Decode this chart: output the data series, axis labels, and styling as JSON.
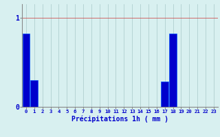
{
  "categories": [
    0,
    1,
    2,
    3,
    4,
    5,
    6,
    7,
    8,
    9,
    10,
    11,
    12,
    13,
    14,
    15,
    16,
    17,
    18,
    19,
    20,
    21,
    22,
    23
  ],
  "values": [
    0.82,
    0.3,
    0.0,
    0.0,
    0.0,
    0.0,
    0.0,
    0.0,
    0.0,
    0.0,
    0.0,
    0.0,
    0.0,
    0.0,
    0.0,
    0.0,
    0.0,
    0.28,
    0.82,
    0.0,
    0.0,
    0.0,
    0.0,
    0.0
  ],
  "bar_color": "#0000cc",
  "bar_edge_color": "#0055ff",
  "background_color": "#d8f0f0",
  "grid_color_x": "#a8c8c8",
  "grid_color_y": "#cc3333",
  "xlabel": "Précipitations 1h ( mm )",
  "xlabel_color": "#0000cc",
  "tick_color": "#0000cc",
  "ytick_labels": [
    "0",
    "1"
  ],
  "ytick_values": [
    0,
    1
  ],
  "ylim": [
    0,
    1.15
  ],
  "xlim": [
    -0.5,
    23.5
  ],
  "bar_width": 0.9
}
